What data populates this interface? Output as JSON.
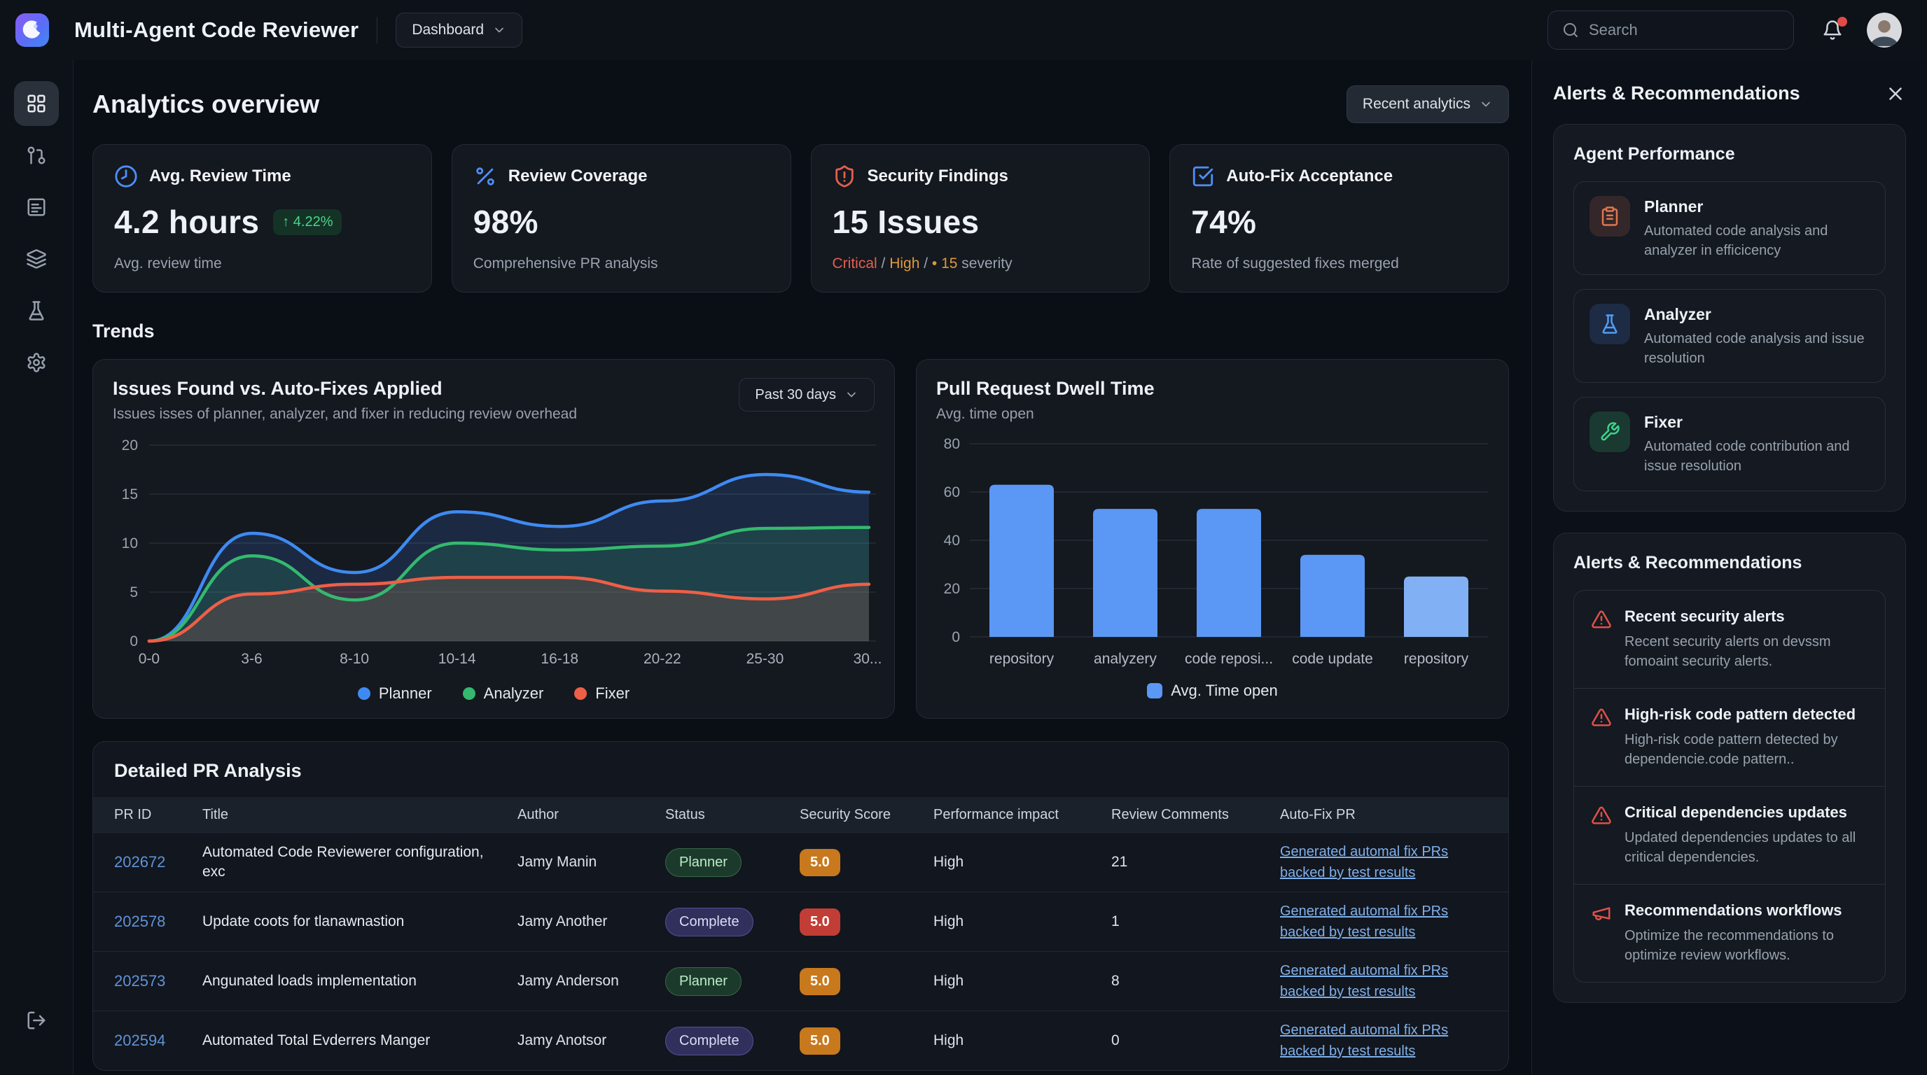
{
  "header": {
    "app_title": "Multi-Agent Code Reviewer",
    "nav_label": "Dashboard",
    "search_placeholder": "Search"
  },
  "sidebar": {
    "items": [
      "dashboard-icon",
      "pull-request-icon",
      "review-queue-icon",
      "layers-icon",
      "experiments-icon",
      "settings-icon"
    ],
    "bottom_item": "logout-icon"
  },
  "page": {
    "title": "Analytics overview",
    "filter_label": "Recent analytics",
    "trends_label": "Trends"
  },
  "stats": [
    {
      "icon": "clock-icon",
      "icon_color": "#4f8ef7",
      "label": "Avg. Review Time",
      "value": "4.2 hours",
      "trend": "↑ 4.22%",
      "sub": "Avg. review time"
    },
    {
      "icon": "percent-icon",
      "icon_color": "#4f8ef7",
      "label": "Review Coverage",
      "value": "98%",
      "sub": "Comprehensive PR analysis"
    },
    {
      "icon": "shield-alert-icon",
      "icon_color": "#e2604e",
      "label": "Security Findings",
      "value": "15 Issues",
      "sub_parts": [
        {
          "text": "Critical",
          "color": "#e2604e"
        },
        {
          "text": " / ",
          "color": "#9aa3ae"
        },
        {
          "text": "High",
          "color": "#e0983a"
        },
        {
          "text": " / ",
          "color": "#9aa3ae"
        },
        {
          "text": "• 15",
          "color": "#e0983a"
        },
        {
          "text": " severity",
          "color": "#9aa3ae"
        }
      ]
    },
    {
      "icon": "check-square-icon",
      "icon_color": "#4f8ef7",
      "label": "Auto-Fix Acceptance",
      "value": "74%",
      "sub": "Rate of suggested fixes merged"
    }
  ],
  "chart_data": [
    {
      "type": "area",
      "title": "Issues Found vs. Auto-Fixes Applied",
      "subtitle": "Issues isses of planner, analyzer, and fixer in reducing review overhead",
      "range_label": "Past 30 days",
      "x": [
        "0-0",
        "3-6",
        "8-10",
        "10-14",
        "16-18",
        "20-22",
        "25-30",
        "30..."
      ],
      "ylim": [
        0,
        20
      ],
      "yticks": [
        0,
        5,
        10,
        15,
        20
      ],
      "grid": true,
      "legend_position": "bottom",
      "series": [
        {
          "name": "Planner",
          "color": "#3f8af2",
          "values": [
            0,
            11,
            7,
            13.2,
            11.7,
            14.3,
            17,
            15.2
          ]
        },
        {
          "name": "Analyzer",
          "color": "#34b96f",
          "values": [
            0,
            8.7,
            4.2,
            10,
            9.3,
            9.7,
            11.5,
            11.6
          ]
        },
        {
          "name": "Fixer",
          "color": "#ee5f46",
          "values": [
            0,
            4.8,
            5.8,
            6.5,
            6.5,
            5.1,
            4.3,
            5.8
          ]
        }
      ]
    },
    {
      "type": "bar",
      "title": "Pull Request Dwell Time",
      "subtitle": "Avg. time open",
      "categories": [
        "repository",
        "analyzery",
        "code reposi...",
        "code update",
        "repository"
      ],
      "values": [
        63,
        53,
        53,
        34,
        25
      ],
      "colors": [
        "#5b97f5",
        "#5b97f5",
        "#5b97f5",
        "#5b97f5",
        "#82b0f4"
      ],
      "ylim": [
        0,
        80
      ],
      "yticks": [
        0,
        20,
        40,
        60,
        80
      ],
      "grid": true,
      "legend": "Avg. Time open",
      "legend_color": "#5b97f5",
      "legend_position": "bottom"
    }
  ],
  "table": {
    "title": "Detailed PR Analysis",
    "columns": [
      "PR ID",
      "Title",
      "Author",
      "Status",
      "Security Score",
      "Performance impact",
      "Review Comments",
      "Auto-Fix PR"
    ],
    "rows": [
      {
        "id": "202672",
        "title": "Automated Code Reviewerer configuration, exc",
        "author": "Jamy Manin",
        "status": "Planner",
        "status_variant": "planner",
        "score": "5.0",
        "score_color": "#c8791d",
        "impact": "High",
        "comments": "21",
        "autofix": "Generated automal fix PRs backed by test results"
      },
      {
        "id": "202578",
        "title": "Update coots for tlanawnastion",
        "author": "Jamy Another",
        "status": "Complete",
        "status_variant": "complete",
        "score": "5.0",
        "score_color": "#c23d35",
        "impact": "High",
        "comments": "1",
        "autofix": "Generated automal fix PRs backed by test results"
      },
      {
        "id": "202573",
        "title": "Angunated loads implementation",
        "author": "Jamy Anderson",
        "status": "Planner",
        "status_variant": "planner",
        "score": "5.0",
        "score_color": "#c8791d",
        "impact": "High",
        "comments": "8",
        "autofix": "Generated automal fix PRs backed by test results"
      },
      {
        "id": "202594",
        "title": "Automated Total Evderrers Manger",
        "author": "Jamy Anotsor",
        "status": "Complete",
        "status_variant": "complete",
        "score": "5.0",
        "score_color": "#c8791d",
        "impact": "High",
        "comments": "0",
        "autofix": "Generated automal fix PRs backed by test results"
      }
    ]
  },
  "panel": {
    "title": "Alerts & Recommendations",
    "agent_section": {
      "title": "Agent Performance",
      "items": [
        {
          "icon": "clipboard-icon",
          "icon_color": "#e0764f",
          "box_bg": "rgba(224,118,79,0.16)",
          "name": "Planner",
          "desc": "Automated code analysis and analyzer in efficicency"
        },
        {
          "icon": "flask-icon",
          "icon_color": "#4f9df7",
          "box_bg": "rgba(79,142,247,0.16)",
          "name": "Analyzer",
          "desc": "Automated code analysis and issue resolution"
        },
        {
          "icon": "wrench-icon",
          "icon_color": "#3fd48a",
          "box_bg": "rgba(52,185,111,0.20)",
          "name": "Fixer",
          "desc": "Automated code contribution and issue resolution"
        }
      ]
    },
    "alerts_section": {
      "title": "Alerts & Recommendations",
      "icon_color": "#dd5147",
      "items": [
        {
          "icon": "alert-triangle-icon",
          "title": "Recent security alerts",
          "desc": "Recent security alerts on devssm fomoaint security alerts."
        },
        {
          "icon": "alert-triangle-icon",
          "title": "High-risk code pattern detected",
          "desc": "High-risk code pattern detected by dependencie.code pattern.."
        },
        {
          "icon": "alert-triangle-icon",
          "title": "Critical dependencies updates",
          "desc": "Updated dependencies updates to all critical dependencies."
        },
        {
          "icon": "megaphone-icon",
          "title": "Recommendations workflows",
          "desc": "Optimize the recommendations to optimize review workflows."
        }
      ]
    }
  }
}
